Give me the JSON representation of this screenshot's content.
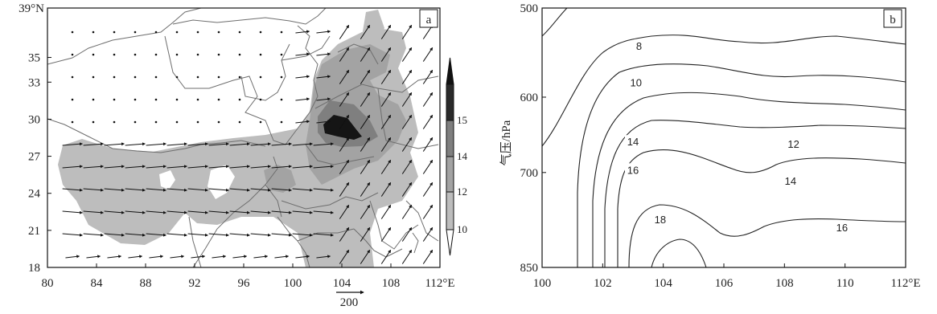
{
  "chart_data": [
    {
      "type": "map",
      "panel_label": "a",
      "xlim": [
        80,
        112
      ],
      "ylim": [
        18,
        39
      ],
      "x_ticks": [
        "80",
        "84",
        "88",
        "92",
        "96",
        "100",
        "104",
        "108",
        "112°E"
      ],
      "y_ticks": [
        "18",
        "21",
        "24",
        "27",
        "30",
        "33",
        "35",
        "39°N"
      ],
      "colorbar": {
        "ticks": [
          "10",
          "12",
          "14",
          "15"
        ],
        "levels": [
          10,
          12,
          14,
          15
        ],
        "colors": [
          "#bdbdbd",
          "#a3a3a3",
          "#7f7f7f",
          "#1a1a1a"
        ]
      },
      "reference_vector_label": "200",
      "shaded_regions": [
        {
          "level": 10,
          "region": "southern band 83-109°E, 20-29°N"
        },
        {
          "level": 12,
          "region": "Sichuan basin to Shaanxi, 101-108°E, 25-36°N"
        },
        {
          "level": 14,
          "region": "around 103-106°E, 28-32°N"
        },
        {
          "level": 15,
          "region": "core near 104°E, 30°N"
        }
      ],
      "vectors": "weak over the plateau, westerly 15-20°N to 28°N, southwesterly/southerly east of 104°E"
    },
    {
      "type": "contour",
      "panel_label": "b",
      "xlim": [
        100,
        112
      ],
      "ylim": [
        850,
        500
      ],
      "x_ticks": [
        "100",
        "102",
        "104",
        "106",
        "108",
        "110",
        "112°E"
      ],
      "y_ticks": [
        "500",
        "600",
        "700",
        "850"
      ],
      "ylabel": "气压/hPa",
      "contour_labels": [
        {
          "text": "8",
          "x": 103.2,
          "p": 540
        },
        {
          "text": "10",
          "x": 103.1,
          "p": 582
        },
        {
          "text": "14",
          "x": 103.0,
          "p": 657
        },
        {
          "text": "12",
          "x": 108.3,
          "p": 660
        },
        {
          "text": "16",
          "x": 103.0,
          "p": 696
        },
        {
          "text": "14",
          "x": 108.2,
          "p": 712
        },
        {
          "text": "18",
          "x": 103.9,
          "p": 770
        },
        {
          "text": "16",
          "x": 109.9,
          "p": 783
        }
      ]
    }
  ]
}
